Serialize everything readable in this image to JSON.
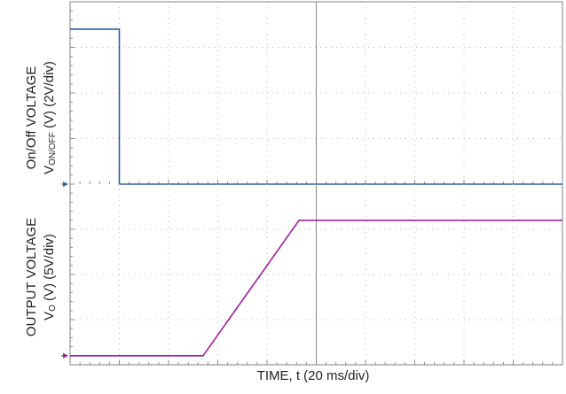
{
  "chart_data": [
    {
      "type": "line",
      "title": "",
      "ylabel": {
        "line1": "On/Off VOLTAGE",
        "line2_prefix": "V",
        "line2_sub": "ON/OFF",
        "line2_suffix": " (V) (2V/div)"
      },
      "xlabel": "",
      "x_unit": "ms",
      "x_divisions": 10,
      "y_divisions": 4,
      "y_per_div": 2,
      "ylim": [
        0,
        8
      ],
      "xlim": [
        0,
        200
      ],
      "grid": true,
      "color": "#2e5fa8",
      "series": [
        {
          "x": [
            0,
            20,
            20,
            200
          ],
          "y": [
            6.8,
            6.8,
            0,
            0
          ]
        }
      ]
    },
    {
      "type": "line",
      "title": "",
      "ylabel": {
        "line1": "OUTPUT VOLTAGE",
        "line2_prefix": "V",
        "line2_sub": "O",
        "line2_suffix": " (V) (5V/div)"
      },
      "xlabel": "TIME, t (20 ms/div)",
      "x_unit": "ms",
      "x_divisions": 10,
      "y_divisions": 4,
      "y_per_div": 5,
      "ylim": [
        -1,
        19
      ],
      "xlim": [
        0,
        200
      ],
      "grid": true,
      "color": "#a01fa0",
      "series": [
        {
          "x": [
            0,
            54,
            93,
            200
          ],
          "y": [
            0,
            0,
            15,
            15
          ]
        }
      ]
    }
  ]
}
